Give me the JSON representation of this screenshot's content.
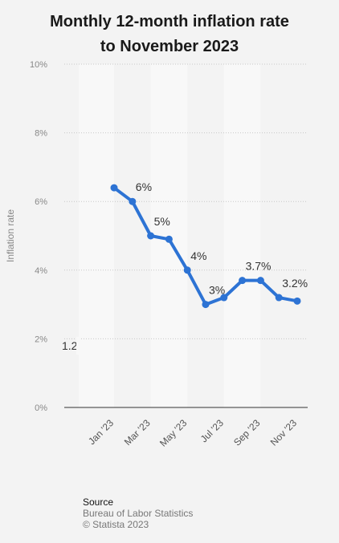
{
  "header": {
    "title_line1": "Monthly 12-month inflation rate",
    "title_line2": "to November 2023"
  },
  "chart_data": {
    "type": "line",
    "title": "Monthly 12-month inflation rate to November 2023",
    "ylabel": "Inflation rate",
    "xlabel": "",
    "ylim": [
      0,
      10
    ],
    "yticks": [
      "0%",
      "2%",
      "4%",
      "6%",
      "8%",
      "10%"
    ],
    "yticks_values": [
      0,
      2,
      4,
      6,
      8,
      10
    ],
    "grid": true,
    "x": [
      "Jan '23",
      "Feb '23",
      "Mar '23",
      "Apr '23",
      "May '23",
      "Jun '23",
      "Jul '23",
      "Aug '23",
      "Sep '23",
      "Oct '23",
      "Nov '23"
    ],
    "xtick_labels": [
      "Jan '23",
      "Mar '23",
      "May '23",
      "Jul '23",
      "Sep '23",
      "Nov '23"
    ],
    "series": [
      {
        "values": [
          6.4,
          6.0,
          5.0,
          4.9,
          4.0,
          3.0,
          3.2,
          3.7,
          3.7,
          3.2,
          3.1
        ],
        "color": "#2d73d4"
      }
    ],
    "data_labels": [
      {
        "index": 1,
        "text": "6%"
      },
      {
        "index": 2,
        "text": "5%"
      },
      {
        "index": 4,
        "text": "4%"
      },
      {
        "index": 5,
        "text": "3%"
      },
      {
        "index": 7,
        "text": "3.7%"
      },
      {
        "index": 9,
        "text": "3.2%"
      }
    ],
    "partial_label": "1.2"
  },
  "source": {
    "title": "Source",
    "line1": "Bureau of Labor Statistics",
    "line2": "© Statista 2023"
  }
}
